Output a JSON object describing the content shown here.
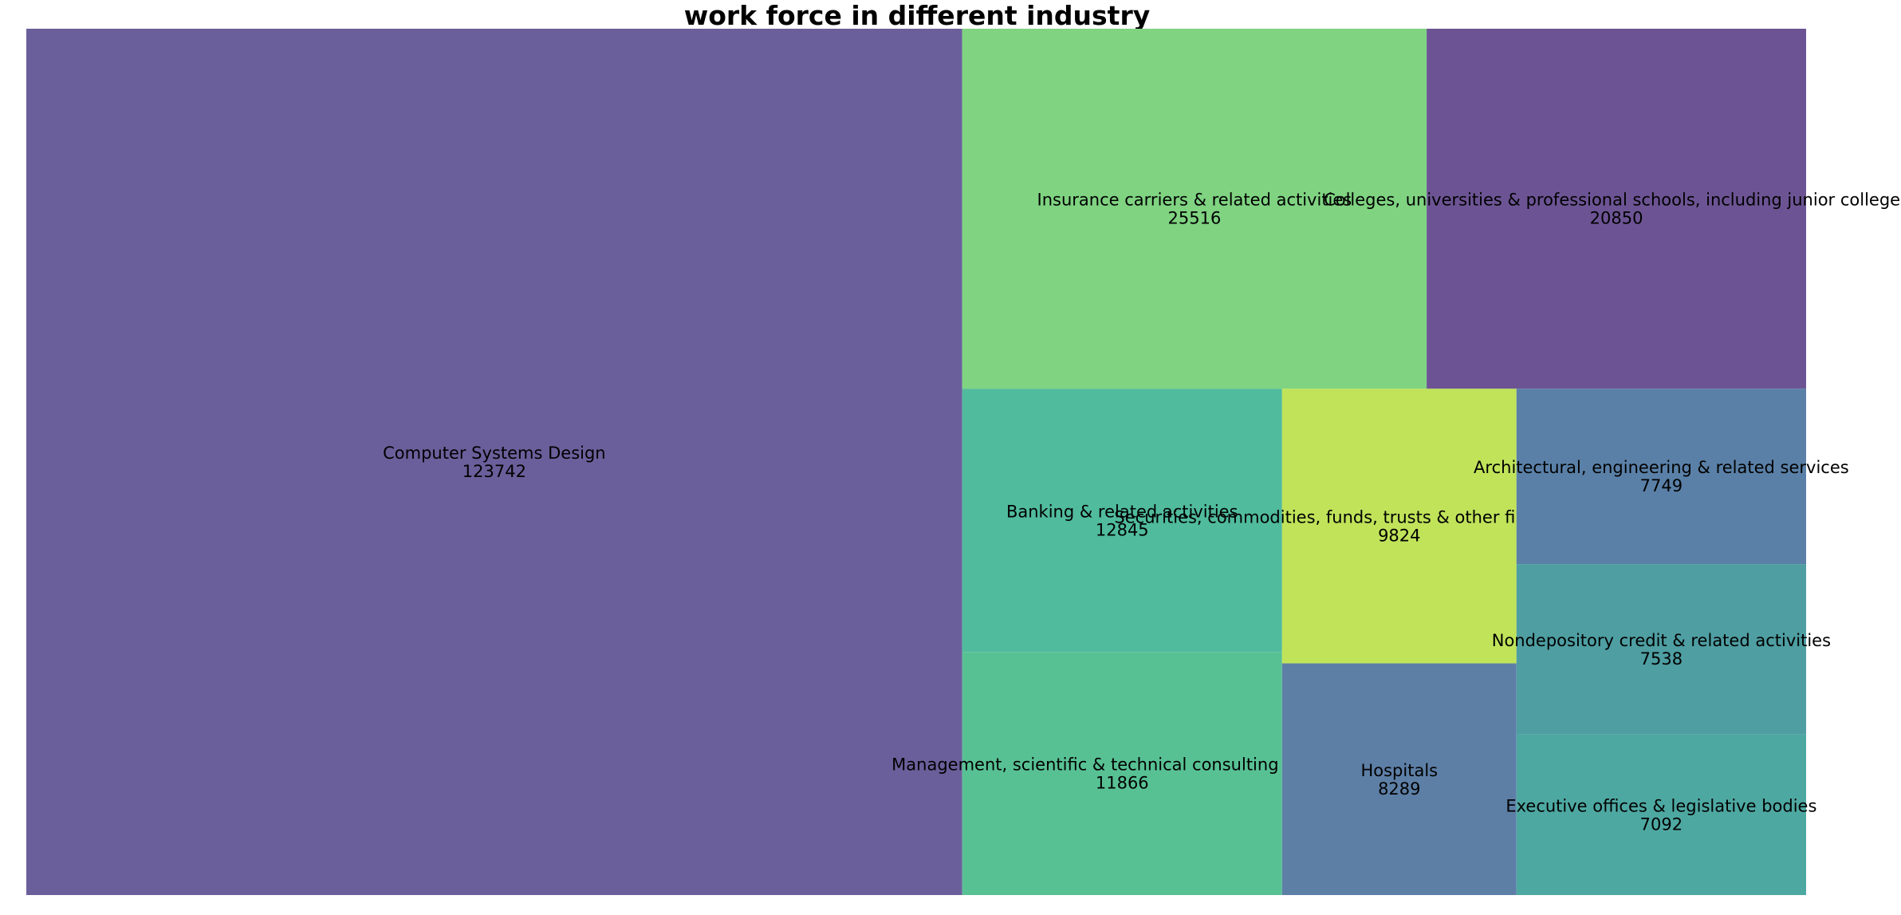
{
  "chart_data": {
    "type": "treemap",
    "title": "work force in different industry",
    "items": [
      {
        "label": "Computer Systems Design",
        "value": 123742,
        "color": "#6b5f9b"
      },
      {
        "label": "Insurance carriers & related activities",
        "value": 25516,
        "color": "#7fd381"
      },
      {
        "label": "Colleges, universities & professional schools, including junior colleges",
        "value": 20850,
        "color": "#6c5494"
      },
      {
        "label": "Banking & related activities",
        "value": 12845,
        "color": "#50bb9d"
      },
      {
        "label": "Management, scientific & technical consulting services",
        "value": 11866,
        "color": "#58c194"
      },
      {
        "label": "Securities, commodities, funds, trusts & other financial investments",
        "value": 9824,
        "color": "#c0e35a"
      },
      {
        "label": "Hospitals",
        "value": 8289,
        "color": "#5d7fa6"
      },
      {
        "label": "Architectural, engineering & related services",
        "value": 7749,
        "color": "#5a80a7"
      },
      {
        "label": "Nondepository credit & related activities",
        "value": 7538,
        "color": "#4e9ea2"
      },
      {
        "label": "Executive offices & legislative bodies",
        "value": 7092,
        "color": "#4ea8a2"
      }
    ]
  }
}
